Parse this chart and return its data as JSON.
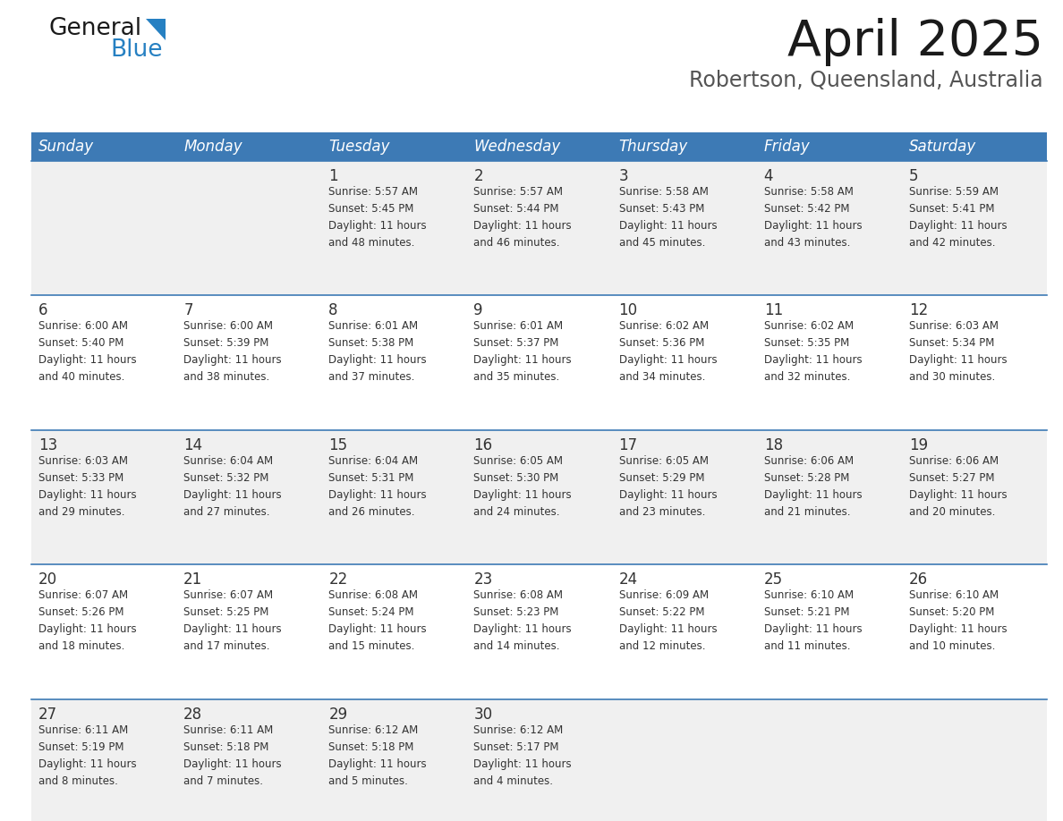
{
  "title": "April 2025",
  "subtitle": "Robertson, Queensland, Australia",
  "header_bg": "#3d7ab5",
  "header_text_color": "#ffffff",
  "days_of_week": [
    "Sunday",
    "Monday",
    "Tuesday",
    "Wednesday",
    "Thursday",
    "Friday",
    "Saturday"
  ],
  "row_bg_odd": "#f0f0f0",
  "row_bg_even": "#ffffff",
  "divider_color": "#3d7ab5",
  "text_color": "#333333",
  "calendar_data": [
    [
      {
        "day": "",
        "info": ""
      },
      {
        "day": "",
        "info": ""
      },
      {
        "day": "1",
        "info": "Sunrise: 5:57 AM\nSunset: 5:45 PM\nDaylight: 11 hours\nand 48 minutes."
      },
      {
        "day": "2",
        "info": "Sunrise: 5:57 AM\nSunset: 5:44 PM\nDaylight: 11 hours\nand 46 minutes."
      },
      {
        "day": "3",
        "info": "Sunrise: 5:58 AM\nSunset: 5:43 PM\nDaylight: 11 hours\nand 45 minutes."
      },
      {
        "day": "4",
        "info": "Sunrise: 5:58 AM\nSunset: 5:42 PM\nDaylight: 11 hours\nand 43 minutes."
      },
      {
        "day": "5",
        "info": "Sunrise: 5:59 AM\nSunset: 5:41 PM\nDaylight: 11 hours\nand 42 minutes."
      }
    ],
    [
      {
        "day": "6",
        "info": "Sunrise: 6:00 AM\nSunset: 5:40 PM\nDaylight: 11 hours\nand 40 minutes."
      },
      {
        "day": "7",
        "info": "Sunrise: 6:00 AM\nSunset: 5:39 PM\nDaylight: 11 hours\nand 38 minutes."
      },
      {
        "day": "8",
        "info": "Sunrise: 6:01 AM\nSunset: 5:38 PM\nDaylight: 11 hours\nand 37 minutes."
      },
      {
        "day": "9",
        "info": "Sunrise: 6:01 AM\nSunset: 5:37 PM\nDaylight: 11 hours\nand 35 minutes."
      },
      {
        "day": "10",
        "info": "Sunrise: 6:02 AM\nSunset: 5:36 PM\nDaylight: 11 hours\nand 34 minutes."
      },
      {
        "day": "11",
        "info": "Sunrise: 6:02 AM\nSunset: 5:35 PM\nDaylight: 11 hours\nand 32 minutes."
      },
      {
        "day": "12",
        "info": "Sunrise: 6:03 AM\nSunset: 5:34 PM\nDaylight: 11 hours\nand 30 minutes."
      }
    ],
    [
      {
        "day": "13",
        "info": "Sunrise: 6:03 AM\nSunset: 5:33 PM\nDaylight: 11 hours\nand 29 minutes."
      },
      {
        "day": "14",
        "info": "Sunrise: 6:04 AM\nSunset: 5:32 PM\nDaylight: 11 hours\nand 27 minutes."
      },
      {
        "day": "15",
        "info": "Sunrise: 6:04 AM\nSunset: 5:31 PM\nDaylight: 11 hours\nand 26 minutes."
      },
      {
        "day": "16",
        "info": "Sunrise: 6:05 AM\nSunset: 5:30 PM\nDaylight: 11 hours\nand 24 minutes."
      },
      {
        "day": "17",
        "info": "Sunrise: 6:05 AM\nSunset: 5:29 PM\nDaylight: 11 hours\nand 23 minutes."
      },
      {
        "day": "18",
        "info": "Sunrise: 6:06 AM\nSunset: 5:28 PM\nDaylight: 11 hours\nand 21 minutes."
      },
      {
        "day": "19",
        "info": "Sunrise: 6:06 AM\nSunset: 5:27 PM\nDaylight: 11 hours\nand 20 minutes."
      }
    ],
    [
      {
        "day": "20",
        "info": "Sunrise: 6:07 AM\nSunset: 5:26 PM\nDaylight: 11 hours\nand 18 minutes."
      },
      {
        "day": "21",
        "info": "Sunrise: 6:07 AM\nSunset: 5:25 PM\nDaylight: 11 hours\nand 17 minutes."
      },
      {
        "day": "22",
        "info": "Sunrise: 6:08 AM\nSunset: 5:24 PM\nDaylight: 11 hours\nand 15 minutes."
      },
      {
        "day": "23",
        "info": "Sunrise: 6:08 AM\nSunset: 5:23 PM\nDaylight: 11 hours\nand 14 minutes."
      },
      {
        "day": "24",
        "info": "Sunrise: 6:09 AM\nSunset: 5:22 PM\nDaylight: 11 hours\nand 12 minutes."
      },
      {
        "day": "25",
        "info": "Sunrise: 6:10 AM\nSunset: 5:21 PM\nDaylight: 11 hours\nand 11 minutes."
      },
      {
        "day": "26",
        "info": "Sunrise: 6:10 AM\nSunset: 5:20 PM\nDaylight: 11 hours\nand 10 minutes."
      }
    ],
    [
      {
        "day": "27",
        "info": "Sunrise: 6:11 AM\nSunset: 5:19 PM\nDaylight: 11 hours\nand 8 minutes."
      },
      {
        "day": "28",
        "info": "Sunrise: 6:11 AM\nSunset: 5:18 PM\nDaylight: 11 hours\nand 7 minutes."
      },
      {
        "day": "29",
        "info": "Sunrise: 6:12 AM\nSunset: 5:18 PM\nDaylight: 11 hours\nand 5 minutes."
      },
      {
        "day": "30",
        "info": "Sunrise: 6:12 AM\nSunset: 5:17 PM\nDaylight: 11 hours\nand 4 minutes."
      },
      {
        "day": "",
        "info": ""
      },
      {
        "day": "",
        "info": ""
      },
      {
        "day": "",
        "info": ""
      }
    ]
  ],
  "logo_text_general": "General",
  "logo_text_blue": "Blue",
  "logo_color_general": "#1a1a1a",
  "logo_color_blue": "#2680c2",
  "logo_triangle_color": "#2680c2",
  "title_fontsize": 40,
  "subtitle_fontsize": 17,
  "header_fontsize": 12,
  "day_num_fontsize": 12,
  "info_fontsize": 8.5
}
